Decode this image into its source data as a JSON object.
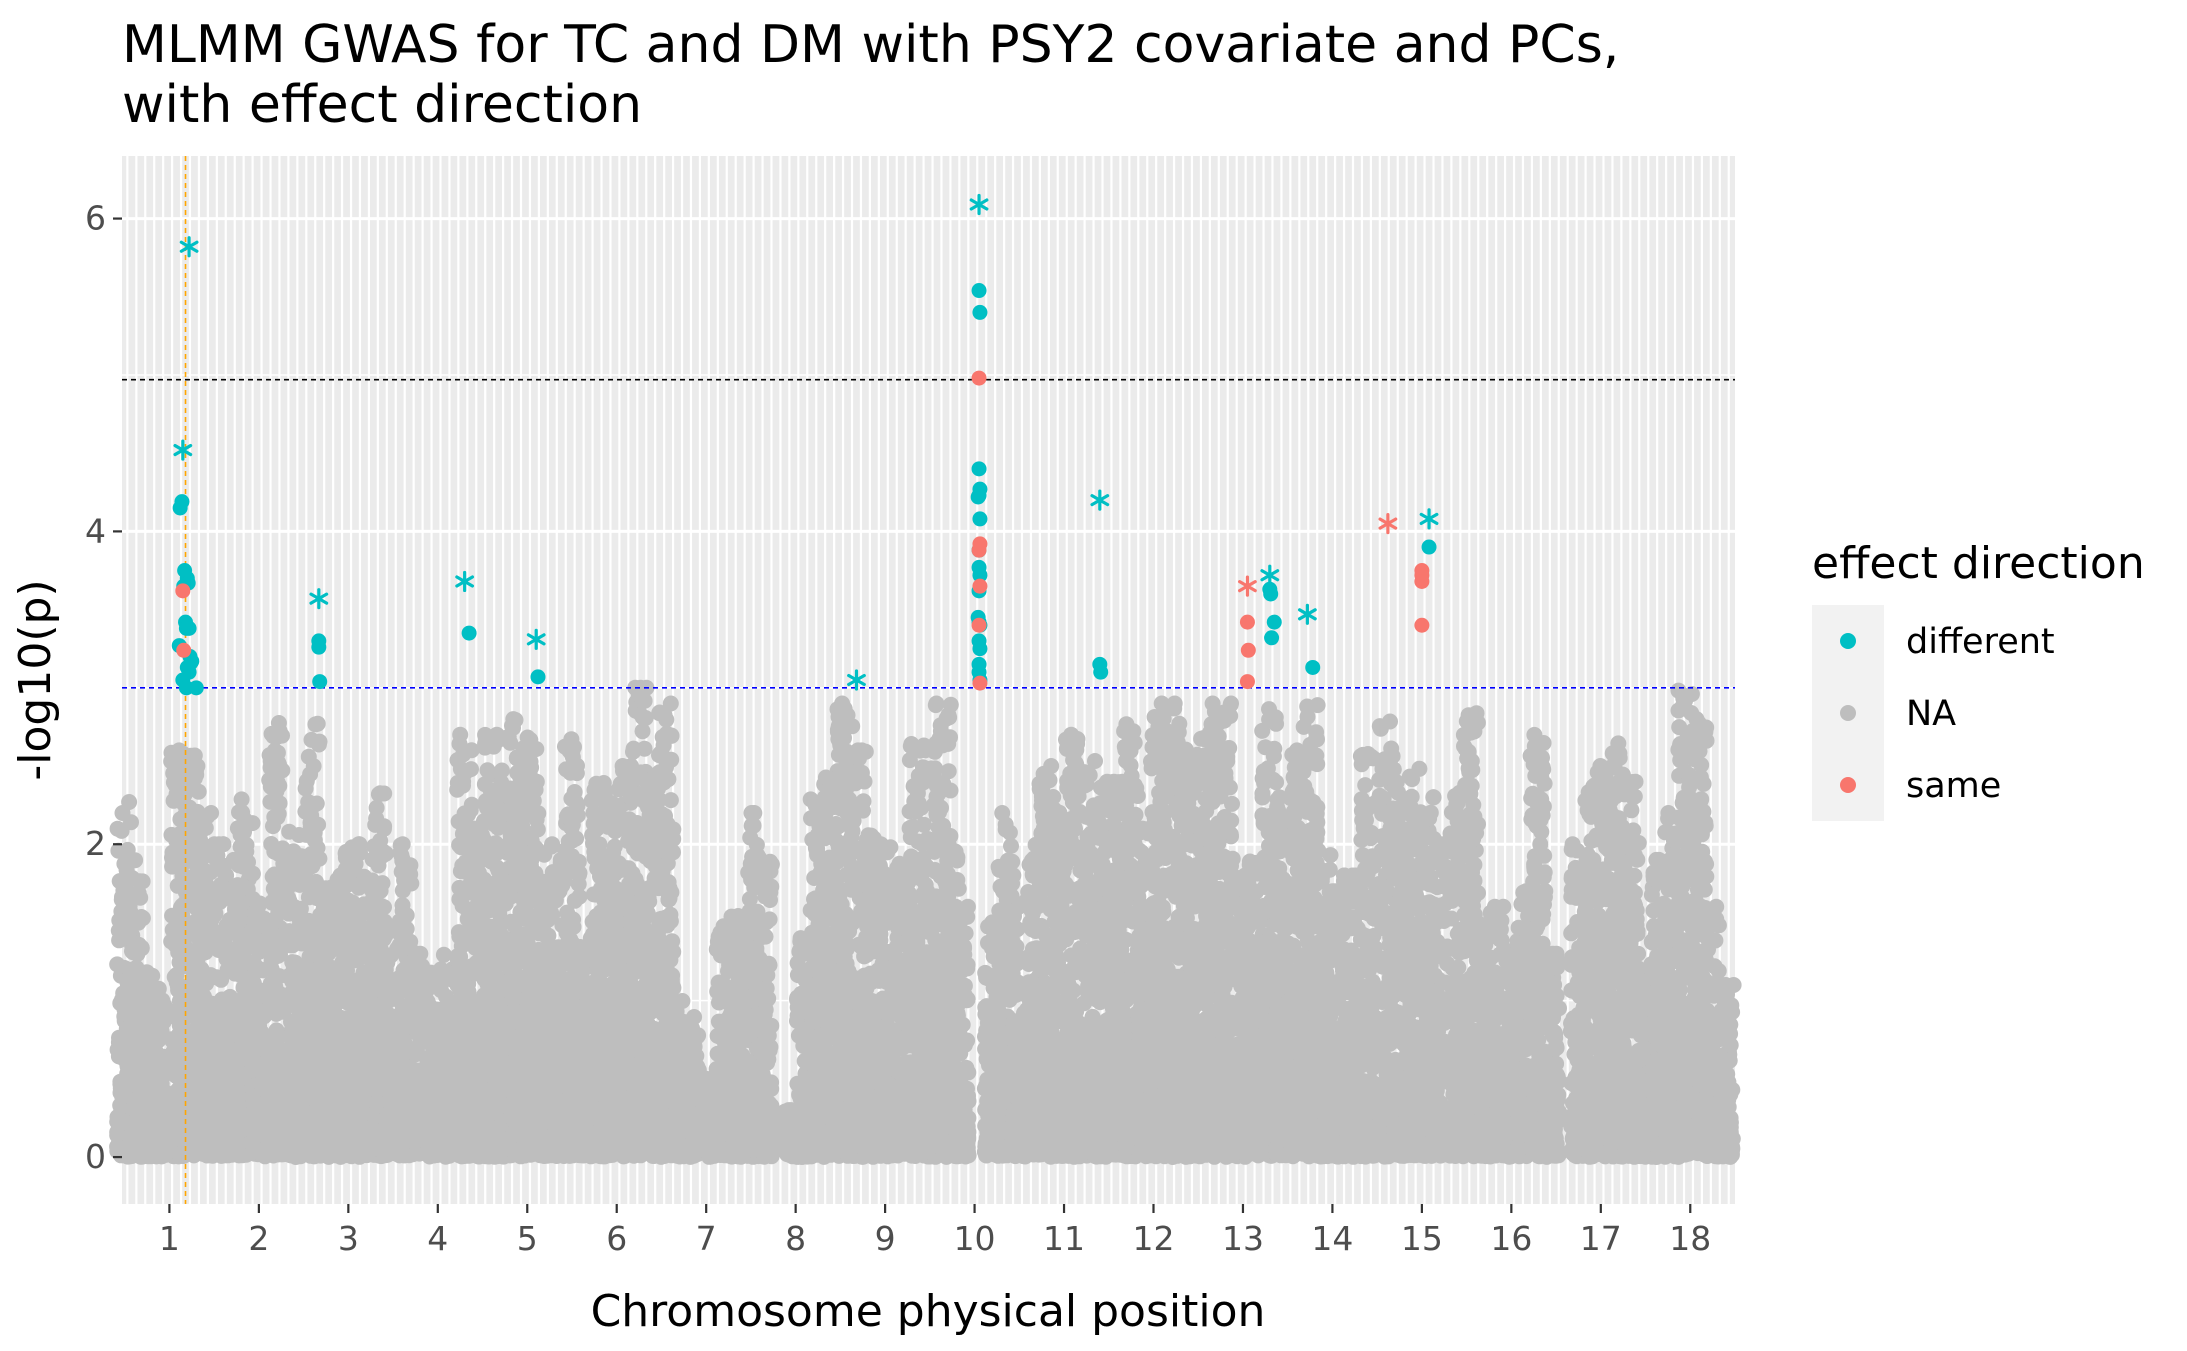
{
  "chart_data": {
    "type": "scatter",
    "title": [
      "MLMM GWAS for TC and DM with PSY2 covariate and PCs,",
      "with effect direction"
    ],
    "xlabel": "Chromosome physical position",
    "ylabel": "-log10(p)",
    "xlim": [
      0.47,
      18.5
    ],
    "ylim": [
      -0.3,
      6.4
    ],
    "y_ticks": [
      0,
      2,
      4,
      6
    ],
    "x_ticks": [
      {
        "label": "1",
        "x": 1
      },
      {
        "label": "2",
        "x": 2
      },
      {
        "label": "3",
        "x": 3
      },
      {
        "label": "4",
        "x": 4
      },
      {
        "label": "5",
        "x": 5
      },
      {
        "label": "6",
        "x": 6
      },
      {
        "label": "7",
        "x": 7
      },
      {
        "label": "8",
        "x": 8
      },
      {
        "label": "9",
        "x": 9
      },
      {
        "label": "10",
        "x": 10
      },
      {
        "label": "11",
        "x": 11
      },
      {
        "label": "12",
        "x": 12
      },
      {
        "label": "13",
        "x": 13
      },
      {
        "label": "14",
        "x": 14
      },
      {
        "label": "15",
        "x": 15
      },
      {
        "label": "16",
        "x": 16
      },
      {
        "label": "17",
        "x": 17
      },
      {
        "label": "18",
        "x": 18
      }
    ],
    "grid": true,
    "reference_lines": [
      {
        "orientation": "horizontal",
        "y": 4.97,
        "color": "#000000",
        "style": "dashed"
      },
      {
        "orientation": "horizontal",
        "y": 3.0,
        "color": "#0000ff",
        "style": "dashed"
      },
      {
        "orientation": "vertical",
        "x": 1.18,
        "color": "#ffa500",
        "style": "dashed"
      }
    ],
    "legend": {
      "title": "effect direction",
      "position": "right",
      "entries": [
        {
          "label": "different",
          "color": "#00bfc4"
        },
        {
          "label": "NA",
          "color": "#bebebe"
        },
        {
          "label": "same",
          "color": "#f8766d"
        }
      ]
    },
    "background_profile": [
      [
        0.5,
        0.35,
        2.27
      ],
      [
        0.62,
        0.3,
        1.9
      ],
      [
        0.75,
        0.2,
        1.2
      ],
      [
        0.88,
        0.2,
        1.1
      ],
      [
        1.1,
        0.6,
        2.6
      ],
      [
        1.25,
        0.7,
        2.6
      ],
      [
        1.4,
        0.5,
        2.2
      ],
      [
        1.55,
        0.5,
        2.0
      ],
      [
        1.7,
        0.45,
        1.9
      ],
      [
        1.85,
        0.5,
        2.3
      ],
      [
        2.0,
        0.4,
        1.7
      ],
      [
        2.2,
        0.3,
        2.8
      ],
      [
        2.4,
        0.3,
        2.1
      ],
      [
        2.6,
        0.35,
        2.8
      ],
      [
        2.75,
        0.3,
        1.8
      ],
      [
        2.9,
        0.3,
        1.8
      ],
      [
        3.05,
        0.3,
        2.0
      ],
      [
        3.2,
        0.3,
        1.8
      ],
      [
        3.35,
        0.35,
        2.35
      ],
      [
        3.5,
        0.3,
        1.5
      ],
      [
        3.65,
        0.35,
        2.0
      ],
      [
        3.8,
        0.3,
        1.3
      ],
      [
        3.95,
        0.3,
        1.2
      ],
      [
        4.1,
        0.3,
        1.3
      ],
      [
        4.3,
        0.4,
        2.7
      ],
      [
        4.45,
        0.35,
        2.1
      ],
      [
        4.6,
        0.4,
        2.7
      ],
      [
        4.75,
        0.35,
        2.7
      ],
      [
        4.9,
        0.4,
        2.8
      ],
      [
        5.05,
        0.35,
        2.75
      ],
      [
        5.2,
        0.3,
        2.0
      ],
      [
        5.35,
        0.3,
        1.9
      ],
      [
        5.5,
        0.35,
        2.7
      ],
      [
        5.65,
        0.3,
        1.4
      ],
      [
        5.8,
        0.3,
        2.4
      ],
      [
        5.95,
        0.35,
        2.3
      ],
      [
        6.1,
        0.4,
        2.5
      ],
      [
        6.25,
        0.55,
        3.0
      ],
      [
        6.4,
        0.4,
        2.4
      ],
      [
        6.55,
        0.3,
        2.9
      ],
      [
        6.7,
        0.3,
        1.0
      ],
      [
        6.85,
        0.3,
        0.9
      ],
      [
        7.05,
        0.3,
        0.5
      ],
      [
        7.2,
        0.3,
        1.5
      ],
      [
        7.35,
        0.3,
        1.6
      ],
      [
        7.5,
        0.35,
        2.2
      ],
      [
        7.65,
        0.3,
        2.0
      ],
      [
        7.95,
        0.3,
        0.3
      ],
      [
        8.1,
        0.3,
        1.4
      ],
      [
        8.25,
        0.35,
        2.3
      ],
      [
        8.4,
        0.35,
        2.5
      ],
      [
        8.55,
        0.35,
        2.9
      ],
      [
        8.7,
        0.3,
        2.6
      ],
      [
        8.85,
        0.3,
        2.1
      ],
      [
        9.0,
        0.3,
        2.0
      ],
      [
        9.2,
        0.3,
        1.9
      ],
      [
        9.35,
        0.3,
        2.7
      ],
      [
        9.5,
        0.35,
        2.6
      ],
      [
        9.65,
        0.6,
        2.9
      ],
      [
        9.75,
        0.45,
        2.0
      ],
      [
        9.85,
        0.3,
        1.6
      ],
      [
        10.2,
        0.3,
        1.5
      ],
      [
        10.35,
        0.3,
        2.2
      ],
      [
        10.5,
        0.3,
        1.6
      ],
      [
        10.65,
        0.3,
        2.0
      ],
      [
        10.8,
        0.3,
        2.5
      ],
      [
        10.95,
        0.3,
        2.3
      ],
      [
        11.1,
        0.3,
        2.7
      ],
      [
        11.3,
        0.35,
        2.6
      ],
      [
        11.45,
        0.35,
        2.4
      ],
      [
        11.6,
        0.3,
        2.4
      ],
      [
        11.75,
        0.3,
        2.8
      ],
      [
        11.9,
        0.3,
        2.1
      ],
      [
        12.05,
        0.35,
        2.9
      ],
      [
        12.2,
        0.35,
        2.9
      ],
      [
        12.35,
        0.35,
        2.8
      ],
      [
        12.5,
        0.4,
        2.7
      ],
      [
        12.65,
        0.45,
        2.9
      ],
      [
        12.8,
        0.35,
        2.9
      ],
      [
        12.95,
        0.3,
        1.8
      ],
      [
        13.1,
        0.3,
        1.9
      ],
      [
        13.3,
        0.45,
        2.9
      ],
      [
        13.45,
        0.35,
        2.3
      ],
      [
        13.6,
        0.4,
        2.6
      ],
      [
        13.75,
        0.45,
        2.9
      ],
      [
        13.9,
        0.35,
        2.0
      ],
      [
        14.05,
        0.3,
        1.7
      ],
      [
        14.2,
        0.3,
        1.8
      ],
      [
        14.4,
        0.3,
        2.6
      ],
      [
        14.6,
        0.35,
        2.8
      ],
      [
        14.75,
        0.35,
        2.4
      ],
      [
        14.9,
        0.4,
        2.5
      ],
      [
        15.05,
        0.35,
        2.3
      ],
      [
        15.2,
        0.3,
        2.0
      ],
      [
        15.4,
        0.3,
        2.4
      ],
      [
        15.55,
        0.3,
        2.85
      ],
      [
        15.7,
        0.3,
        1.6
      ],
      [
        15.85,
        0.3,
        1.6
      ],
      [
        16.0,
        0.3,
        1.3
      ],
      [
        16.15,
        0.3,
        1.7
      ],
      [
        16.3,
        0.3,
        2.7
      ],
      [
        16.45,
        0.3,
        1.3
      ],
      [
        16.75,
        0.35,
        2.0
      ],
      [
        16.9,
        0.35,
        2.4
      ],
      [
        17.05,
        0.35,
        2.5
      ],
      [
        17.2,
        0.35,
        2.7
      ],
      [
        17.35,
        0.3,
        2.4
      ],
      [
        17.5,
        0.3,
        1.3
      ],
      [
        17.65,
        0.35,
        1.9
      ],
      [
        17.8,
        0.4,
        2.2
      ],
      [
        17.95,
        0.35,
        3.0
      ],
      [
        18.1,
        0.4,
        2.8
      ],
      [
        18.25,
        0.3,
        1.6
      ],
      [
        18.4,
        0.3,
        1.1
      ]
    ],
    "series": [
      {
        "name": "different",
        "color": "#00bfc4",
        "marker": "point",
        "x": [
          1.12,
          1.14,
          1.16,
          1.17,
          1.18,
          1.19,
          1.2,
          1.21,
          1.22,
          1.23,
          1.24,
          1.11,
          1.15,
          1.2,
          1.22,
          1.25,
          1.3,
          1.19,
          2.67,
          2.67,
          2.68,
          4.35,
          5.12,
          10.05,
          10.06,
          10.05,
          10.06,
          10.05,
          10.04,
          10.06,
          10.05,
          10.05,
          10.06,
          10.05,
          10.04,
          10.05,
          10.06,
          10.05,
          10.06,
          10.05,
          10.05,
          10.06,
          11.4,
          11.41,
          13.3,
          13.31,
          13.35,
          13.32,
          13.78,
          15.08
        ],
        "y": [
          4.15,
          4.19,
          3.65,
          3.75,
          3.42,
          3.38,
          3.7,
          3.67,
          3.38,
          3.2,
          3.16,
          3.27,
          3.05,
          3.13,
          3.1,
          3.17,
          3.0,
          3.0,
          3.3,
          3.26,
          3.04,
          3.35,
          3.07,
          5.54,
          5.4,
          4.4,
          4.27,
          4.23,
          4.22,
          4.08,
          3.88,
          3.77,
          3.72,
          3.62,
          3.45,
          3.42,
          3.4,
          3.3,
          3.25,
          3.15,
          3.1,
          3.05,
          3.15,
          3.1,
          3.63,
          3.6,
          3.42,
          3.32,
          3.13,
          3.9
        ]
      },
      {
        "name": "same",
        "color": "#f8766d",
        "marker": "point",
        "x": [
          1.15,
          1.16,
          10.05,
          10.06,
          10.05,
          10.06,
          10.05,
          10.06,
          13.05,
          13.06,
          13.05,
          15.0,
          15.0,
          15.0,
          15.0
        ],
        "y": [
          3.62,
          3.24,
          4.98,
          3.92,
          3.88,
          3.65,
          3.4,
          3.03,
          3.42,
          3.24,
          3.04,
          3.75,
          3.72,
          3.68,
          3.4
        ]
      },
      {
        "name": "different",
        "color": "#00bfc4",
        "marker": "asterisk",
        "x": [
          1.22,
          1.15,
          2.67,
          4.3,
          5.1,
          8.68,
          10.05,
          11.4,
          13.3,
          13.72,
          15.08
        ],
        "y": [
          5.82,
          4.52,
          3.57,
          3.68,
          3.31,
          3.05,
          6.09,
          4.2,
          3.72,
          3.47,
          4.08
        ]
      },
      {
        "name": "same",
        "color": "#f8766d",
        "marker": "asterisk",
        "x": [
          13.05,
          14.62
        ],
        "y": [
          3.65,
          4.05
        ]
      }
    ]
  }
}
